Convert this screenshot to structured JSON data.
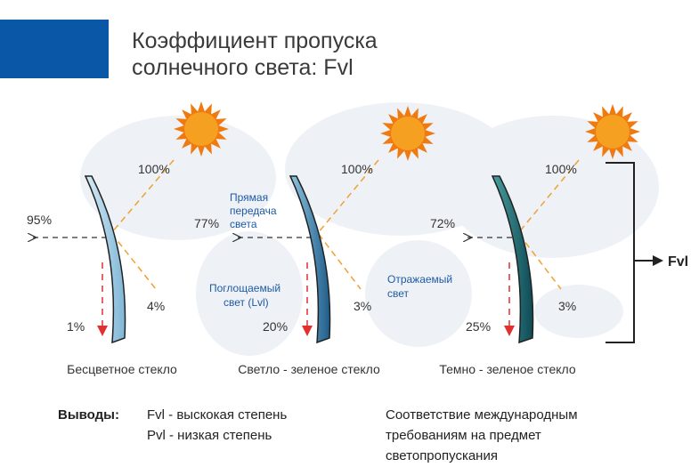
{
  "header": {
    "title_lines": [
      "Коэффициент пропуска",
      "солнечного света: Fvl"
    ]
  },
  "panels": [
    {
      "incident": "100%",
      "transmitted": "95%",
      "reflected": "4%",
      "absorbed": "1%",
      "caption": "Бесцветное стекло"
    },
    {
      "incident": "100%",
      "transmitted": "77%",
      "reflected": "3%",
      "absorbed": "20%",
      "caption": "Светло - зеленое стекло"
    },
    {
      "incident": "100%",
      "transmitted": "72%",
      "reflected": "3%",
      "absorbed": "25%",
      "caption": "Темно - зеленое стекло"
    }
  ],
  "annotations": {
    "direct": [
      "Прямая",
      "передача",
      "света"
    ],
    "absorbed": [
      "Поглощаемый",
      "свет (Lvl)"
    ],
    "reflected": [
      "Отражаемый",
      "свет"
    ]
  },
  "result_label": "Fvl",
  "conclusions": {
    "heading": "Выводы:",
    "items": [
      "Fvl - выскокая степень",
      "Pvl - низкая степень"
    ],
    "note": [
      "Соответствие международным",
      "требованиям на предмет",
      "светопропускания"
    ]
  }
}
